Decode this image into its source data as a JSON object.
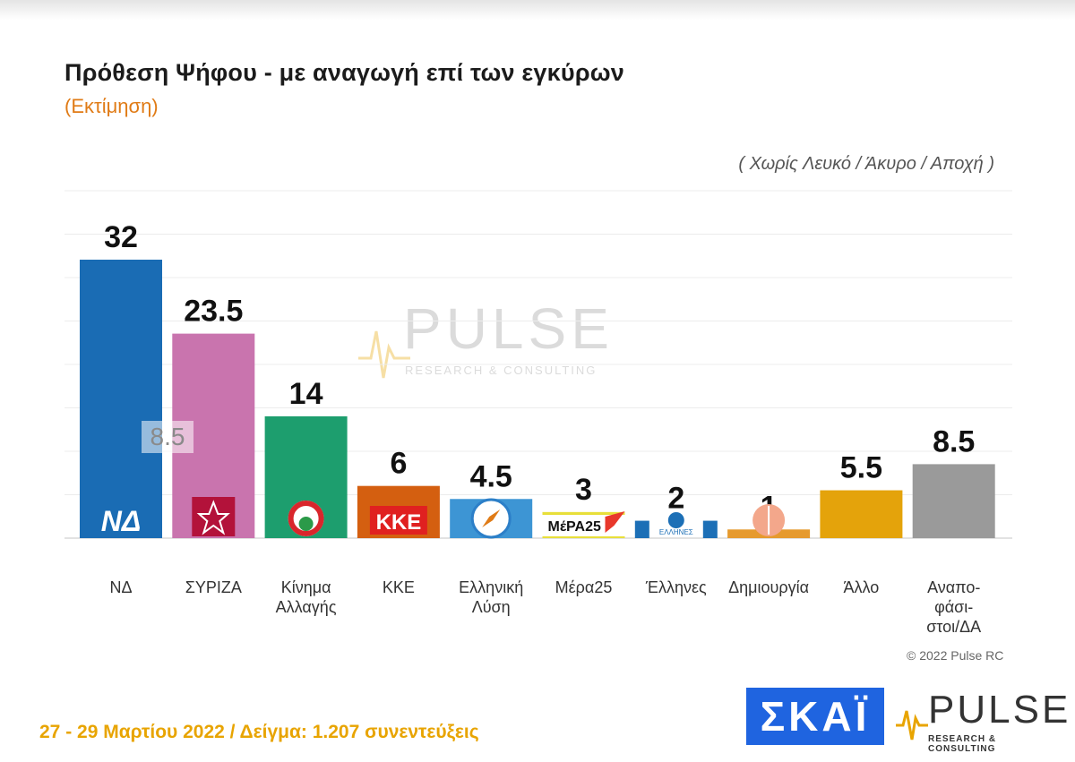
{
  "title": "Πρόθεση Ψήφου - με αναγωγή επί των εγκύρων",
  "subtitle": "(Εκτίμηση)",
  "note": "( Χωρίς Λευκό / Άκυρο / Αποχή )",
  "copyright": "© 2022 Pulse RC",
  "footer": "27 - 29  Μαρτίου  2022  /  Δείγμα:  1.207 συνεντεύξεις",
  "watermark": {
    "word": "PULSE",
    "tag": "RESEARCH & CONSULTING"
  },
  "stray_label": "8.5",
  "logos": {
    "skai": "ΣΚΑΪ",
    "pulse_word": "PULSE",
    "pulse_tag": "RESEARCH & CONSULTING"
  },
  "chart_data": {
    "type": "bar",
    "categories": [
      "ΝΔ",
      "ΣΥΡΙΖΑ",
      "Κίνημα\nΑλλαγής",
      "ΚΚΕ",
      "Ελληνική\nΛύση",
      "Μέρα25",
      "Έλληνες",
      "Δημιουργία",
      "Άλλο",
      "Αναπο-\nφάσι-\nστοι/ΔΑ"
    ],
    "values": [
      32,
      23.5,
      14,
      6,
      4.5,
      3,
      2,
      1,
      5.5,
      8.5
    ],
    "data_labels": [
      "32",
      "23.5",
      "14",
      "6",
      "4.5",
      "3",
      "2",
      "1",
      "5.5",
      "8.5"
    ],
    "colors": [
      "#1a6cb4",
      "#c974ae",
      "#1d9e6e",
      "#d45f10",
      "#3d95d4",
      "#e8df3a",
      "#1c6fb6",
      "#e69a2e",
      "#e4a30b",
      "#9a9a9a"
    ],
    "bar_logos": [
      "ND-logo",
      "SYRIZA-logo",
      "PASOK-KINAL-logo",
      "KKE-logo",
      "Elliniki-Lysi-logo",
      "MeRA25-logo",
      "Ellines-logo",
      "Dimiourgia-logo",
      "",
      ""
    ],
    "logo_text": {
      "ND-logo": "ΝΔ",
      "KKE-logo": "ΚΚΕ",
      "MeRA25-logo": "MέPA25",
      "Ellines-logo": "ΕΛΛΗΝΕΣ"
    },
    "ylim": [
      0,
      35
    ],
    "grid": true
  }
}
